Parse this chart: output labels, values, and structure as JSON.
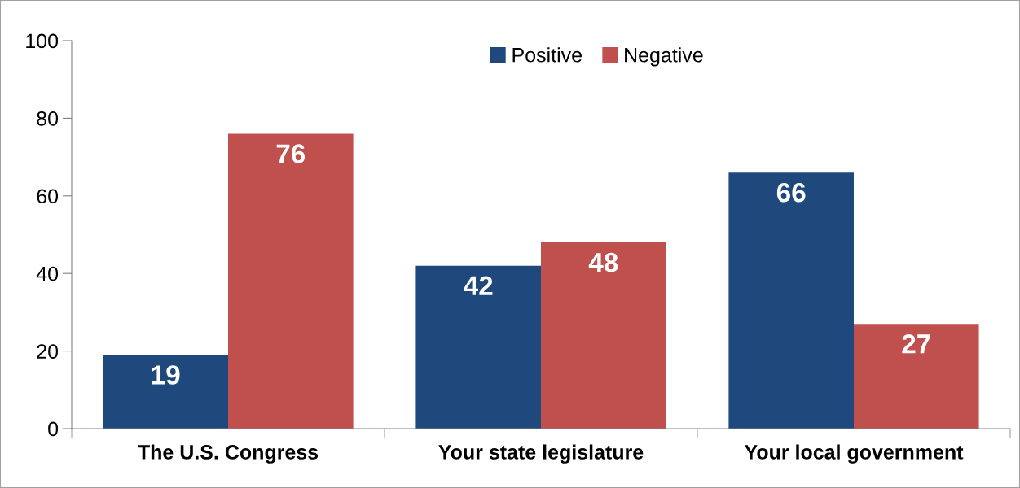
{
  "chart_data": {
    "type": "bar",
    "categories": [
      "The U.S. Congress",
      "Your state legislature",
      "Your local government"
    ],
    "series": [
      {
        "name": "Positive",
        "color": "#1f497d",
        "values": [
          19,
          42,
          66
        ]
      },
      {
        "name": "Negative",
        "color": "#c0504d",
        "values": [
          76,
          48,
          27
        ]
      }
    ],
    "ylim": [
      0,
      100
    ],
    "yticks": [
      0,
      20,
      40,
      60,
      80,
      100
    ],
    "grid": false,
    "legend": "top",
    "data_labels": true
  }
}
